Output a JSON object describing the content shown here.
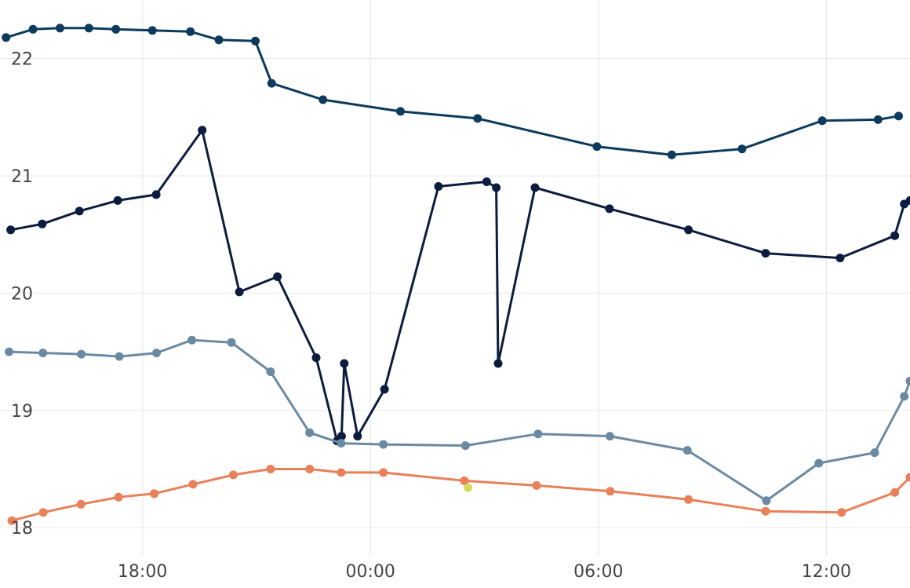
{
  "chart_data": {
    "type": "line",
    "x_unit": "hours",
    "x_ticks": [
      {
        "label": "18:00",
        "value": 18
      },
      {
        "label": "00:00",
        "value": 24
      },
      {
        "label": "06:00",
        "value": 30
      },
      {
        "label": "12:00",
        "value": 36
      }
    ],
    "y_ticks": [
      {
        "label": "18",
        "value": 18
      },
      {
        "label": "19",
        "value": 19
      },
      {
        "label": "20",
        "value": 20
      },
      {
        "label": "21",
        "value": 21
      },
      {
        "label": "22",
        "value": 22
      }
    ],
    "xlim": [
      14.25,
      38.2
    ],
    "ylim": [
      17.76,
      22.5
    ],
    "grid": true,
    "series": [
      {
        "color": "#0d3b5c",
        "points": [
          [
            14.41,
            22.18
          ],
          [
            15.12,
            22.25
          ],
          [
            15.83,
            22.26
          ],
          [
            16.59,
            22.26
          ],
          [
            17.3,
            22.25
          ],
          [
            18.26,
            22.24
          ],
          [
            19.26,
            22.23
          ],
          [
            20.01,
            22.16
          ],
          [
            20.97,
            22.15
          ],
          [
            21.4,
            21.79
          ],
          [
            22.75,
            21.65
          ],
          [
            24.79,
            21.55
          ],
          [
            26.82,
            21.49
          ],
          [
            29.96,
            21.25
          ],
          [
            31.93,
            21.18
          ],
          [
            33.78,
            21.23
          ],
          [
            35.89,
            21.47
          ],
          [
            37.36,
            21.48
          ],
          [
            37.9,
            21.51
          ]
        ]
      },
      {
        "color": "#0b1c3f",
        "points": [
          [
            14.53,
            20.54
          ],
          [
            15.36,
            20.59
          ],
          [
            16.34,
            20.7
          ],
          [
            17.35,
            20.79
          ],
          [
            18.36,
            20.84
          ],
          [
            19.57,
            21.39
          ],
          [
            20.55,
            20.01
          ],
          [
            21.55,
            20.14
          ],
          [
            22.57,
            19.45
          ],
          [
            23.12,
            18.74
          ],
          [
            23.24,
            18.78
          ],
          [
            23.31,
            19.4
          ],
          [
            23.66,
            18.78
          ],
          [
            24.37,
            19.18
          ],
          [
            25.79,
            20.91
          ],
          [
            27.06,
            20.95
          ],
          [
            27.31,
            20.9
          ],
          [
            27.36,
            19.4
          ],
          [
            28.33,
            20.9
          ],
          [
            30.29,
            20.72
          ],
          [
            32.37,
            20.54
          ],
          [
            34.4,
            20.34
          ],
          [
            36.36,
            20.3
          ],
          [
            37.8,
            20.49
          ],
          [
            38.05,
            20.76
          ],
          [
            38.2,
            20.79
          ]
        ]
      },
      {
        "color": "#6b8aa2",
        "points": [
          [
            14.49,
            19.5
          ],
          [
            15.38,
            19.49
          ],
          [
            16.39,
            19.48
          ],
          [
            17.39,
            19.46
          ],
          [
            18.37,
            19.49
          ],
          [
            19.3,
            19.6
          ],
          [
            20.34,
            19.58
          ],
          [
            21.37,
            19.33
          ],
          [
            22.4,
            18.81
          ],
          [
            23.23,
            18.72
          ],
          [
            24.34,
            18.71
          ],
          [
            26.5,
            18.7
          ],
          [
            28.41,
            18.8
          ],
          [
            30.3,
            18.78
          ],
          [
            32.34,
            18.66
          ],
          [
            34.42,
            18.23
          ],
          [
            35.8,
            18.55
          ],
          [
            37.27,
            18.64
          ],
          [
            38.05,
            19.12
          ],
          [
            38.2,
            19.25
          ]
        ]
      },
      {
        "color": "#e8805a",
        "points": [
          [
            14.56,
            18.06
          ],
          [
            15.39,
            18.13
          ],
          [
            16.38,
            18.2
          ],
          [
            17.37,
            18.26
          ],
          [
            18.31,
            18.29
          ],
          [
            19.33,
            18.37
          ],
          [
            20.39,
            18.45
          ],
          [
            21.37,
            18.5
          ],
          [
            22.4,
            18.5
          ],
          [
            23.23,
            18.47
          ],
          [
            24.34,
            18.47
          ],
          [
            26.47,
            18.4
          ],
          [
            28.37,
            18.36
          ],
          [
            30.31,
            18.31
          ],
          [
            32.37,
            18.24
          ],
          [
            34.4,
            18.14
          ],
          [
            36.4,
            18.13
          ],
          [
            37.8,
            18.3
          ],
          [
            38.2,
            18.43
          ]
        ]
      },
      {
        "color": "#d4dc5c",
        "points": [
          [
            26.57,
            18.34
          ]
        ]
      }
    ]
  }
}
